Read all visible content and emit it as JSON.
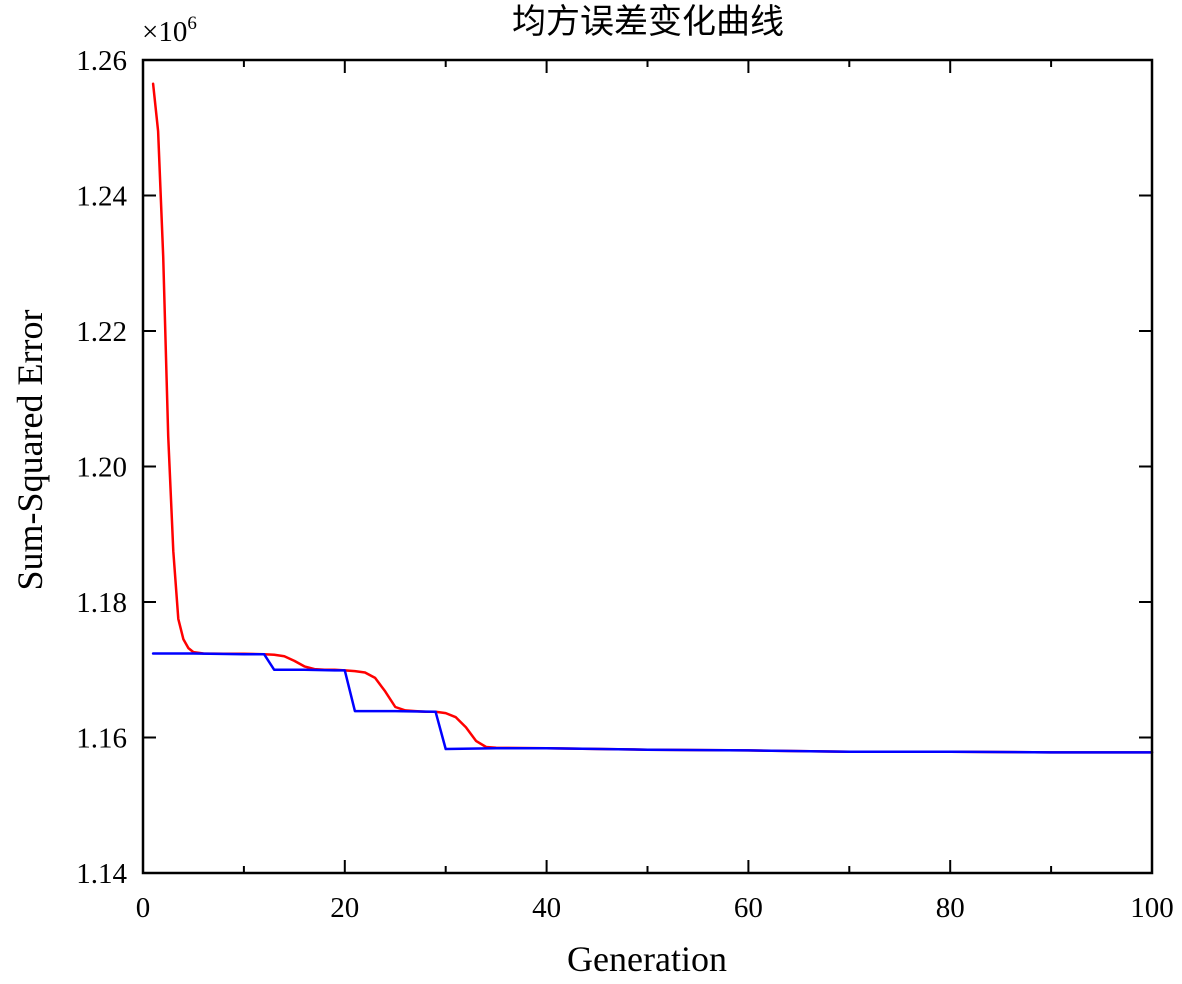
{
  "chart_data": {
    "type": "line",
    "title": "均方误差变化曲线",
    "xlabel": "Generation",
    "ylabel": "Sum-Squared Error",
    "y_multiplier": "×10",
    "y_multiplier_exp": "6",
    "xlim": [
      0,
      100
    ],
    "ylim": [
      1.14,
      1.26
    ],
    "x_ticks": [
      0,
      20,
      40,
      60,
      80,
      100
    ],
    "x_tick_labels": [
      "0",
      "20",
      "40",
      "60",
      "80",
      "100"
    ],
    "x_minor_ticks": [
      10,
      30,
      50,
      70,
      90
    ],
    "y_ticks": [
      1.14,
      1.16,
      1.18,
      1.2,
      1.22,
      1.24,
      1.26
    ],
    "y_tick_labels": [
      "1.14",
      "1.16",
      "1.18",
      "1.20",
      "1.22",
      "1.24",
      "1.26"
    ],
    "grid": false,
    "legend": "none",
    "series": [
      {
        "color": "#ff0000",
        "x": [
          1,
          1.5,
          2,
          2.5,
          3,
          3.5,
          4,
          4.5,
          5,
          6,
          8,
          10,
          12,
          13,
          14,
          15,
          16,
          17,
          18,
          19,
          20,
          21,
          22,
          23,
          24,
          25,
          26,
          27,
          28,
          29,
          30,
          31,
          32,
          33,
          34,
          35,
          40,
          50,
          60,
          70,
          80,
          90,
          100
        ],
        "y": [
          1.2565,
          1.2495,
          1.231,
          1.2045,
          1.1875,
          1.1775,
          1.1745,
          1.1732,
          1.1726,
          1.1724,
          1.17235,
          1.17235,
          1.1723,
          1.1722,
          1.172,
          1.1713,
          1.1705,
          1.1701,
          1.17,
          1.17,
          1.1699,
          1.1698,
          1.1696,
          1.1688,
          1.1668,
          1.1645,
          1.164,
          1.1639,
          1.1638,
          1.1638,
          1.1636,
          1.163,
          1.1615,
          1.1595,
          1.1586,
          1.1585,
          1.1584,
          1.1582,
          1.1581,
          1.1579,
          1.1579,
          1.1578,
          1.1578
        ]
      },
      {
        "color": "#0000ff",
        "x": [
          1,
          5,
          10,
          12,
          13,
          16,
          19,
          20,
          21,
          25,
          29,
          30,
          35,
          40,
          50,
          60,
          70,
          80,
          90,
          100
        ],
        "y": [
          1.1724,
          1.1724,
          1.1723,
          1.1723,
          1.17,
          1.17,
          1.1699,
          1.1699,
          1.1639,
          1.1639,
          1.1638,
          1.1583,
          1.1584,
          1.1584,
          1.1582,
          1.1581,
          1.1579,
          1.1579,
          1.1578,
          1.1578
        ]
      }
    ]
  }
}
